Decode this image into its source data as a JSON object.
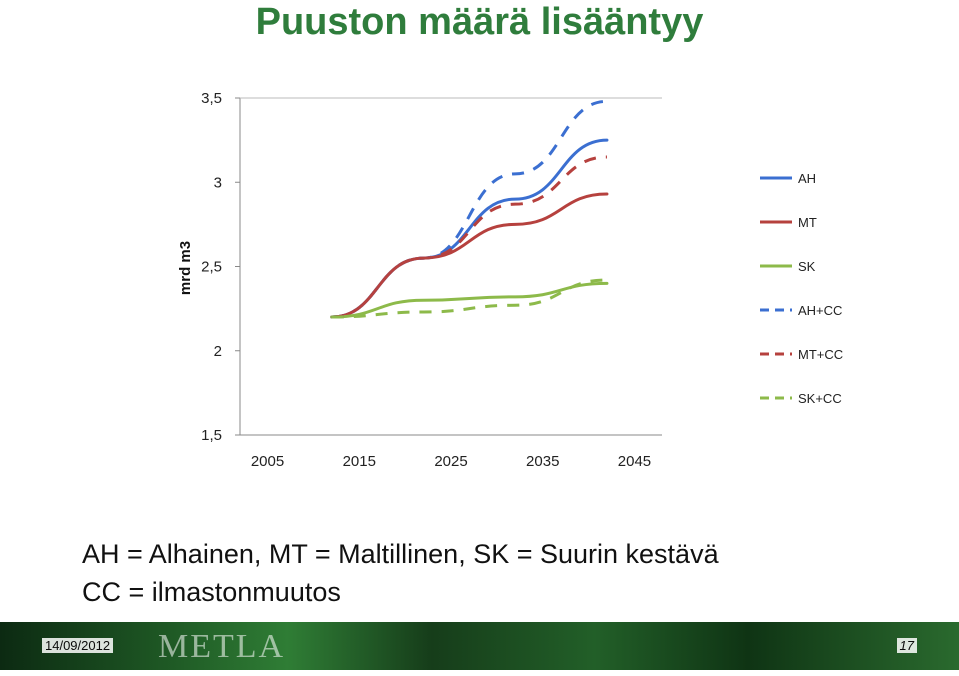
{
  "slide": {
    "title": "Puuston määrä lisääntyy",
    "caption_line1": "AH = Alhainen, MT = Maltillinen, SK = Suurin kestävä",
    "caption_line2": "CC = ilmastonmuutos"
  },
  "footer": {
    "date": "14/09/2012",
    "logo_text": "METLA",
    "page": "17"
  },
  "chart_data": {
    "type": "line",
    "title": "",
    "xlabel": "",
    "ylabel": "mrd m3",
    "ylim": [
      1.5,
      3.5
    ],
    "y_ticks": [
      "1,5",
      "2",
      "2,5",
      "3",
      "3,5"
    ],
    "x_ticks": [
      "2005",
      "2015",
      "2025",
      "2035",
      "2045"
    ],
    "x": [
      2012,
      2022,
      2032,
      2042
    ],
    "grid": false,
    "legend_position": "right",
    "series": [
      {
        "name": "AH",
        "color": "#3b6fd1",
        "dash": false,
        "values": [
          2.2,
          2.55,
          2.9,
          3.25
        ]
      },
      {
        "name": "MT",
        "color": "#b6413e",
        "dash": false,
        "values": [
          2.2,
          2.55,
          2.75,
          2.93
        ]
      },
      {
        "name": "SK",
        "color": "#8dba4a",
        "dash": false,
        "values": [
          2.2,
          2.3,
          2.32,
          2.4
        ]
      },
      {
        "name": "AH+CC",
        "color": "#3b6fd1",
        "dash": true,
        "values": [
          2.2,
          2.55,
          3.05,
          3.48
        ]
      },
      {
        "name": "MT+CC",
        "color": "#b6413e",
        "dash": true,
        "values": [
          2.2,
          2.55,
          2.87,
          3.15
        ]
      },
      {
        "name": "SK+CC",
        "color": "#8dba4a",
        "dash": true,
        "values": [
          2.2,
          2.23,
          2.27,
          2.42
        ]
      }
    ]
  }
}
